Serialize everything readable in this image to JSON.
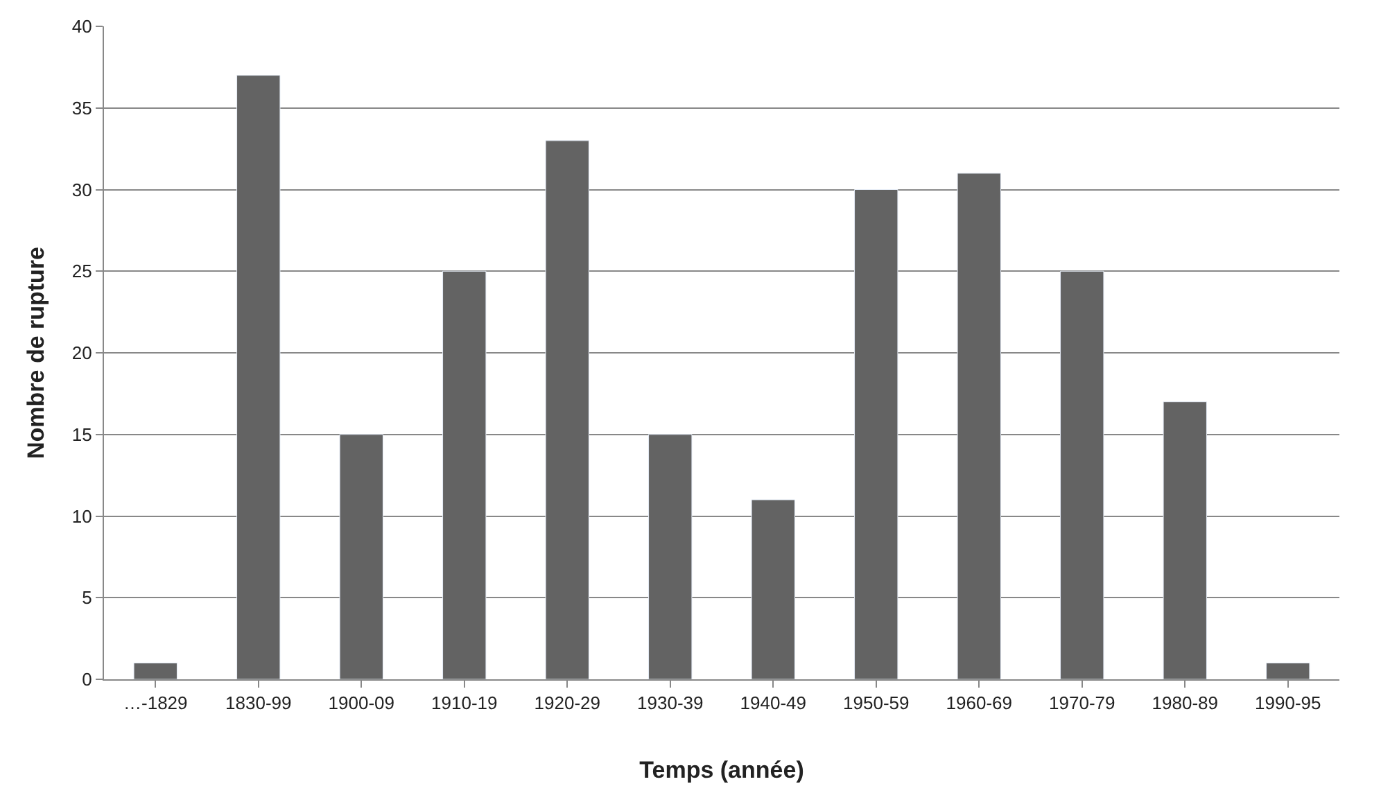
{
  "chart_data": {
    "type": "bar",
    "xlabel": "Temps (année)",
    "ylabel": "Nombre de rupture",
    "categories": [
      "…-1829",
      "1830-99",
      "1900-09",
      "1910-19",
      "1920-29",
      "1930-39",
      "1940-49",
      "1950-59",
      "1960-69",
      "1970-79",
      "1980-89",
      "1990-95"
    ],
    "values": [
      1,
      37,
      15,
      25,
      33,
      15,
      11,
      30,
      31,
      25,
      17,
      1
    ],
    "color": "#636363",
    "ylim": [
      0,
      40
    ],
    "yticks": [
      0,
      5,
      10,
      15,
      20,
      25,
      30,
      35,
      40
    ],
    "grid": "y"
  }
}
